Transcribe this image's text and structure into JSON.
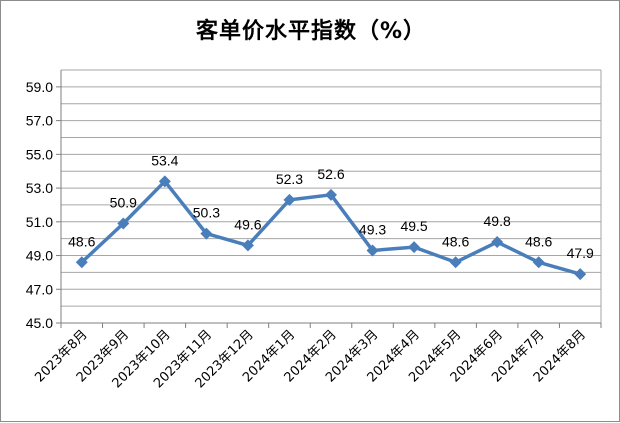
{
  "chart_data": {
    "type": "line",
    "title": "客单价水平指数（%）",
    "categories": [
      "2023年8月",
      "2023年9月",
      "2023年10月",
      "2023年11月",
      "2023年12月",
      "2024年1月",
      "2024年2月",
      "2024年3月",
      "2024年4月",
      "2024年5月",
      "2024年6月",
      "2024年7月",
      "2024年8月"
    ],
    "series": [
      {
        "values": [
          48.6,
          50.9,
          53.4,
          50.3,
          49.6,
          52.3,
          52.6,
          49.3,
          49.5,
          48.6,
          49.8,
          48.6,
          47.9
        ]
      }
    ],
    "y_ticks": [
      "45.0",
      "47.0",
      "49.0",
      "51.0",
      "53.0",
      "55.0",
      "57.0",
      "59.0"
    ],
    "ylim": [
      45,
      60
    ],
    "xlabel": "",
    "ylabel": "",
    "grid": "horizontal",
    "legend": "none",
    "line_color": "#4a7ebb"
  }
}
